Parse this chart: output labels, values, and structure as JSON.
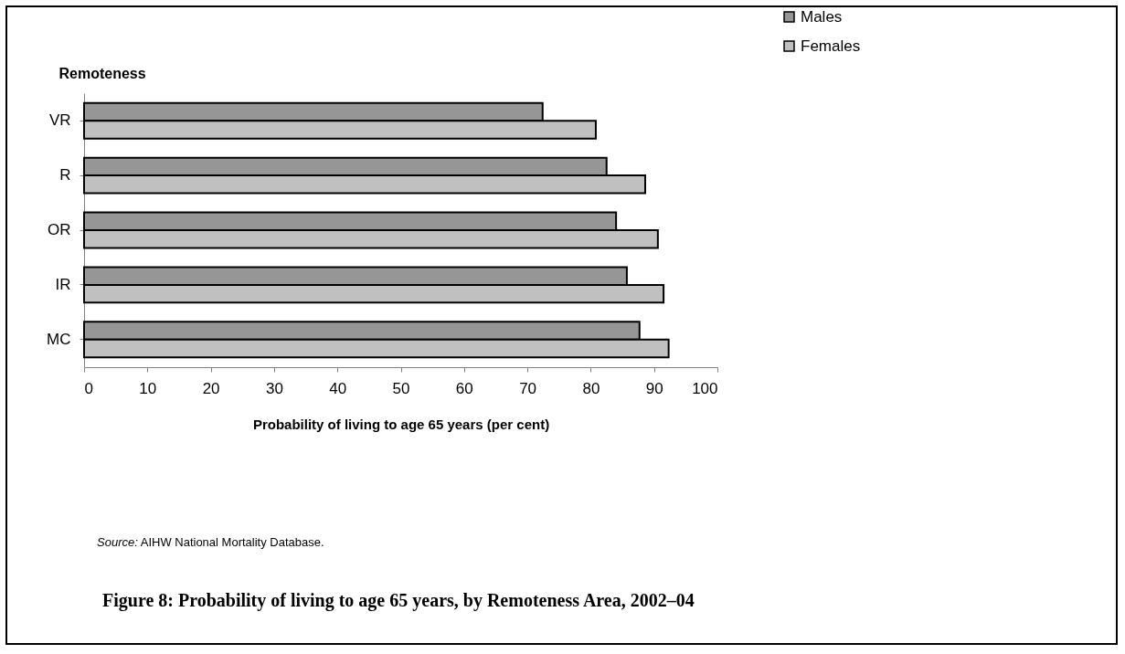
{
  "chart_data": {
    "type": "bar",
    "orientation": "horizontal",
    "title": "Figure 8: Probability of living to age 65 years, by Remoteness Area, 2002–04",
    "xlabel": "Probability of living to age 65 years (per cent)",
    "ylabel": "Remoteness",
    "categories": [
      "VR",
      "R",
      "OR",
      "IR",
      "MC"
    ],
    "series": [
      {
        "name": "Males",
        "color": "#969696",
        "values": [
          72.4,
          82.5,
          84.0,
          85.7,
          87.7
        ]
      },
      {
        "name": "Females",
        "color": "#c0c0c0",
        "values": [
          80.8,
          88.6,
          90.6,
          91.5,
          92.3
        ]
      }
    ],
    "xlim": [
      0,
      100
    ],
    "xticks": [
      0,
      10,
      20,
      30,
      40,
      50,
      60,
      70,
      80,
      90,
      100
    ],
    "grid": false,
    "legend": "top right",
    "annotations": [
      "Source: AIHW National Mortality Database."
    ]
  }
}
